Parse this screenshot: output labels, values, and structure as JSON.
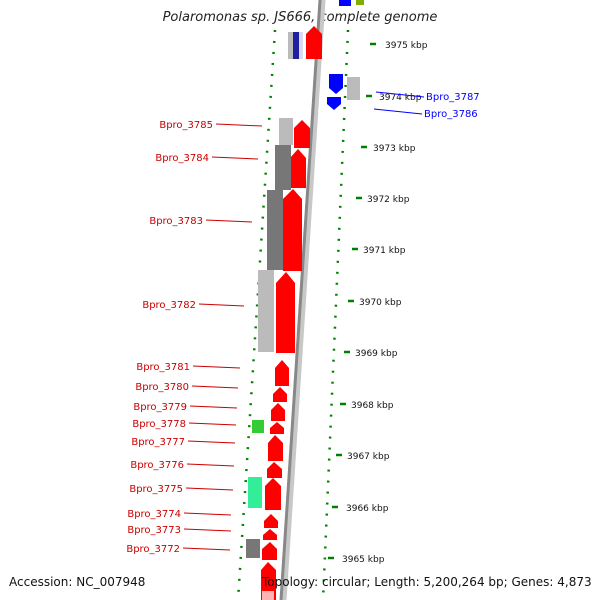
{
  "header": {
    "title": "Polaromonas sp. JS666, complete genome"
  },
  "footer": {
    "accession": "Accession: NC_007948",
    "topology": "Topology: circular; Length: 5,200,264 bp; Genes: 4,873"
  },
  "colors": {
    "forward_strand": "#ff0000",
    "reverse_strand": "#0000ff",
    "tick": "#008000",
    "backbone": "#888888"
  },
  "kbp_labels": [
    "3975 kbp",
    "3974 kbp",
    "3973 kbp",
    "3972 kbp",
    "3971 kbp",
    "3970 kbp",
    "3969 kbp",
    "3968 kbp",
    "3967 kbp",
    "3966 kbp",
    "3965 kbp"
  ],
  "genes_right": [
    "Bpro_3787",
    "Bpro_3786"
  ],
  "genes_left": [
    "Bpro_3785",
    "Bpro_3784",
    "Bpro_3783",
    "Bpro_3782",
    "Bpro_3781",
    "Bpro_3780",
    "Bpro_3779",
    "Bpro_3778",
    "Bpro_3777",
    "Bpro_3776",
    "Bpro_3775",
    "Bpro_3774",
    "Bpro_3773",
    "Bpro_3772"
  ]
}
